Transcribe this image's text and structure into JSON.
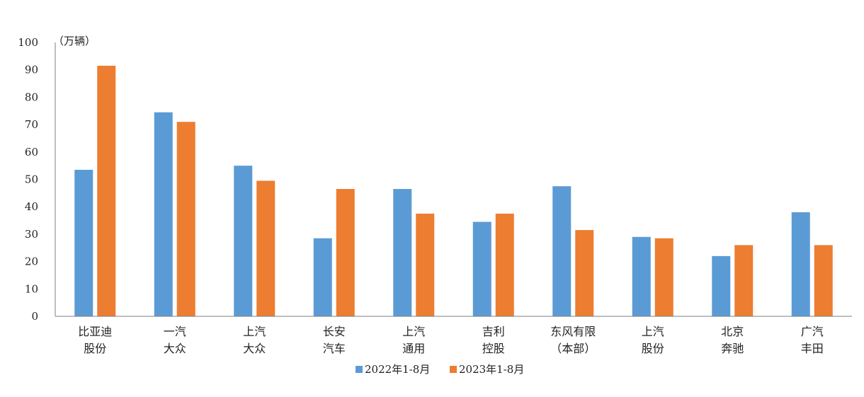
{
  "chart_data": {
    "type": "bar",
    "unit_label": "（万辆）",
    "ylim": [
      0,
      100
    ],
    "yticks": [
      0,
      10,
      20,
      30,
      40,
      50,
      60,
      70,
      80,
      90,
      100
    ],
    "grid": false,
    "legend_position": "bottom-center",
    "categories": [
      [
        "比亚迪",
        "股份"
      ],
      [
        "一汽",
        "大众"
      ],
      [
        "上汽",
        "大众"
      ],
      [
        "长安",
        "汽车"
      ],
      [
        "上汽",
        "通用"
      ],
      [
        "吉利",
        "控股"
      ],
      [
        "东风有限",
        "（本部）"
      ],
      [
        "上汽",
        "股份"
      ],
      [
        "北京",
        "奔驰"
      ],
      [
        "广汽",
        "丰田"
      ]
    ],
    "series": [
      {
        "name": "2022年1-8月",
        "color": "#5B9BD5",
        "values": [
          53.5,
          74.5,
          55.0,
          28.5,
          46.5,
          34.5,
          47.5,
          29.0,
          22.0,
          38.0
        ]
      },
      {
        "name": "2023年1-8月",
        "color": "#ED7D31",
        "values": [
          91.5,
          71.0,
          49.5,
          46.5,
          37.5,
          37.5,
          31.5,
          28.5,
          26.0,
          26.0
        ]
      }
    ]
  }
}
